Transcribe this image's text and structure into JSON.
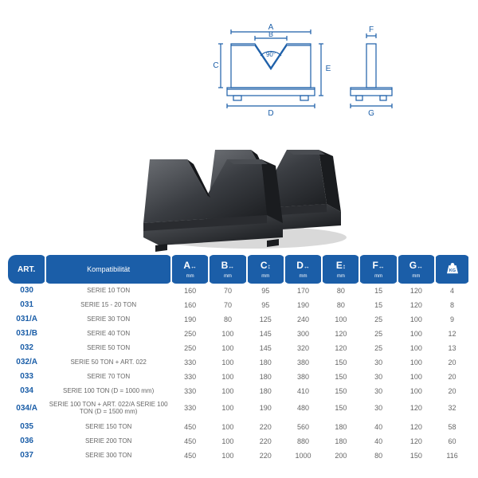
{
  "diagram": {
    "angle_label": "90°",
    "dims": {
      "A": "A",
      "B": "B",
      "C": "C",
      "D": "D",
      "E": "E",
      "F": "F",
      "G": "G"
    },
    "line_color": "#1b5ea8",
    "label_color": "#1b5ea8"
  },
  "photo": {
    "body_color": "#3a3d42",
    "body_dark": "#1a1c1f",
    "body_light": "#6b6e73",
    "base_color": "#2a2c30"
  },
  "table": {
    "headers": {
      "art": "ART.",
      "compat": "Kompatibilität",
      "dims": [
        {
          "big": "A",
          "sub": "mm"
        },
        {
          "big": "B",
          "sub": "mm"
        },
        {
          "big": "C",
          "sub": "mm"
        },
        {
          "big": "D",
          "sub": "mm"
        },
        {
          "big": "E",
          "sub": "mm"
        },
        {
          "big": "F",
          "sub": "mm"
        },
        {
          "big": "G",
          "sub": "mm"
        }
      ],
      "kg": "KG"
    },
    "header_bg": "#1b5ea8",
    "header_fg": "#ffffff",
    "art_color": "#1b5ea8",
    "cell_color": "#666666",
    "rows": [
      {
        "art": "030",
        "compat": "SERIE 10 TON",
        "A": "160",
        "B": "70",
        "C": "95",
        "D": "170",
        "E": "80",
        "F": "15",
        "G": "120",
        "KG": "4"
      },
      {
        "art": "031",
        "compat": "SERIE 15 - 20 TON",
        "A": "160",
        "B": "70",
        "C": "95",
        "D": "190",
        "E": "80",
        "F": "15",
        "G": "120",
        "KG": "8"
      },
      {
        "art": "031/A",
        "compat": "SERIE 30 TON",
        "A": "190",
        "B": "80",
        "C": "125",
        "D": "240",
        "E": "100",
        "F": "25",
        "G": "100",
        "KG": "9"
      },
      {
        "art": "031/B",
        "compat": "SERIE 40 TON",
        "A": "250",
        "B": "100",
        "C": "145",
        "D": "300",
        "E": "120",
        "F": "25",
        "G": "100",
        "KG": "12"
      },
      {
        "art": "032",
        "compat": "SERIE 50 TON",
        "A": "250",
        "B": "100",
        "C": "145",
        "D": "320",
        "E": "120",
        "F": "25",
        "G": "100",
        "KG": "13"
      },
      {
        "art": "032/A",
        "compat": "SERIE 50 TON + ART. 022",
        "A": "330",
        "B": "100",
        "C": "180",
        "D": "380",
        "E": "150",
        "F": "30",
        "G": "100",
        "KG": "20"
      },
      {
        "art": "033",
        "compat": "SERIE 70 TON",
        "A": "330",
        "B": "100",
        "C": "180",
        "D": "380",
        "E": "150",
        "F": "30",
        "G": "100",
        "KG": "20"
      },
      {
        "art": "034",
        "compat": "SERIE 100 TON (D = 1000 mm)",
        "A": "330",
        "B": "100",
        "C": "180",
        "D": "410",
        "E": "150",
        "F": "30",
        "G": "100",
        "KG": "20"
      },
      {
        "art": "034/A",
        "compat": "SERIE 100 TON + ART. 022/A SERIE 100 TON (D = 1500 mm)",
        "A": "330",
        "B": "100",
        "C": "190",
        "D": "480",
        "E": "150",
        "F": "30",
        "G": "120",
        "KG": "32"
      },
      {
        "sep": true,
        "art": "035",
        "compat": "SERIE 150 TON",
        "A": "450",
        "B": "100",
        "C": "220",
        "D": "560",
        "E": "180",
        "F": "40",
        "G": "120",
        "KG": "58"
      },
      {
        "art": "036",
        "compat": "SERIE 200 TON",
        "A": "450",
        "B": "100",
        "C": "220",
        "D": "880",
        "E": "180",
        "F": "40",
        "G": "120",
        "KG": "60"
      },
      {
        "art": "037",
        "compat": "SERIE 300 TON",
        "A": "450",
        "B": "100",
        "C": "220",
        "D": "1000",
        "E": "200",
        "F": "80",
        "G": "150",
        "KG": "116"
      }
    ]
  }
}
